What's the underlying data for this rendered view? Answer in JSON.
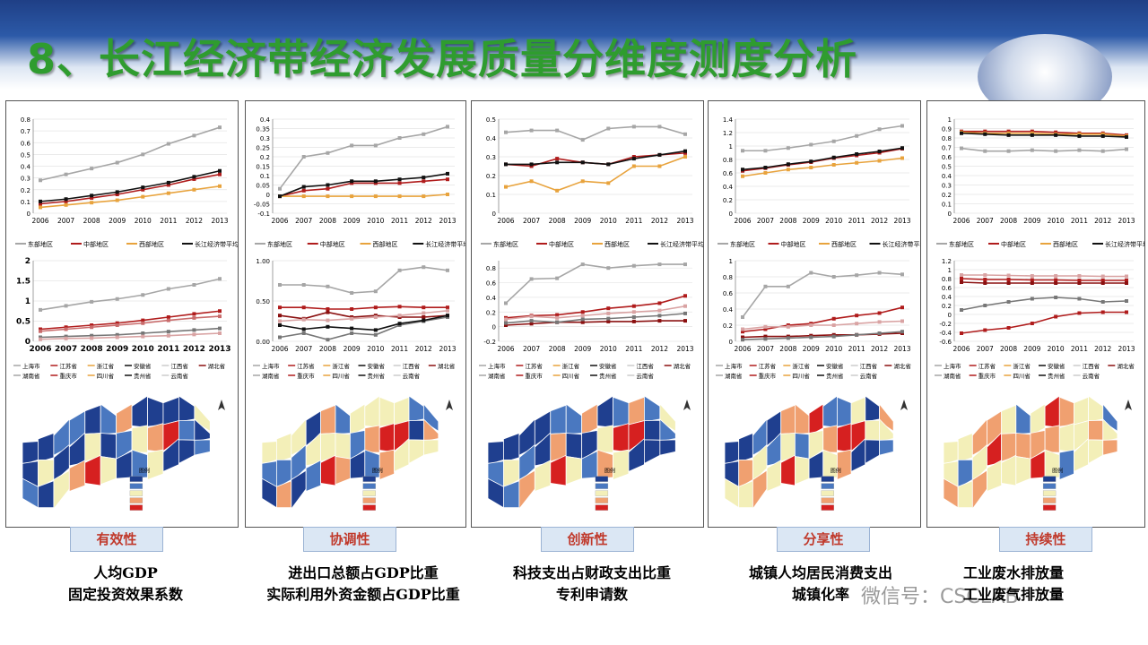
{
  "title": "8、长江经济带经济发展质量分维度测度分析",
  "years": [
    "2006",
    "2007",
    "2008",
    "2009",
    "2010",
    "2011",
    "2012",
    "2013"
  ],
  "region_legend": [
    "东部地区",
    "中部地区",
    "西部地区",
    "长江经济带平均"
  ],
  "province_legend": [
    "上海市",
    "江苏省",
    "浙江省",
    "安徽省",
    "江西省",
    "湖北省",
    "湖南省",
    "重庆市",
    "四川省",
    "贵州省",
    "云南省"
  ],
  "colors": {
    "east": "#a6a6a6",
    "middle": "#b01c1c",
    "west": "#e8a33d",
    "avg": "#111111",
    "title": "#2f9c2f",
    "tag_text": "#c0392b"
  },
  "panels": [
    {
      "tag": "有效性",
      "desc_lines": [
        "人均GDP",
        "固定投资效果系数"
      ],
      "legend4": [
        "东部地区",
        "中部地区",
        "西部地区",
        "长江经济带平均"
      ],
      "top_ticks": [
        "0",
        "0.1",
        "0.2",
        "0.3",
        "0.4",
        "0.5",
        "0.6",
        "0.7",
        "0.8"
      ],
      "top_range": [
        0,
        0.8
      ],
      "top_series": [
        {
          "key": "east",
          "values": [
            0.28,
            0.33,
            0.38,
            0.43,
            0.5,
            0.59,
            0.66,
            0.73
          ]
        },
        {
          "key": "middle",
          "values": [
            0.08,
            0.1,
            0.13,
            0.16,
            0.2,
            0.24,
            0.29,
            0.33
          ]
        },
        {
          "key": "west",
          "values": [
            0.05,
            0.07,
            0.09,
            0.11,
            0.14,
            0.17,
            0.2,
            0.23
          ]
        },
        {
          "key": "avg",
          "values": [
            0.1,
            0.12,
            0.15,
            0.18,
            0.22,
            0.26,
            0.31,
            0.36
          ]
        }
      ],
      "bottom_ticks": [
        "0",
        "0.5",
        "1",
        "1.5",
        "2"
      ],
      "bottom_range": [
        0,
        2
      ],
      "bottom_series": [
        {
          "color": "#a6a6a6",
          "values": [
            0.78,
            0.88,
            0.98,
            1.05,
            1.15,
            1.3,
            1.4,
            1.55
          ]
        },
        {
          "color": "#b01c1c",
          "values": [
            0.3,
            0.35,
            0.4,
            0.45,
            0.52,
            0.6,
            0.68,
            0.75
          ]
        },
        {
          "color": "#c96b6b",
          "values": [
            0.25,
            0.3,
            0.35,
            0.4,
            0.45,
            0.52,
            0.58,
            0.62
          ]
        },
        {
          "color": "#777777",
          "values": [
            0.1,
            0.12,
            0.14,
            0.16,
            0.2,
            0.24,
            0.28,
            0.32
          ]
        },
        {
          "color": "#d9a3a3",
          "values": [
            0.05,
            0.07,
            0.08,
            0.1,
            0.12,
            0.14,
            0.17,
            0.2
          ]
        }
      ],
      "bottom_bold": true,
      "map_legend_title": "图例",
      "palette": [
        "#1f3f8f",
        "#4a78c0",
        "#f3efb8",
        "#f0a070",
        "#d62020"
      ],
      "map_color_order": [
        0,
        0,
        1,
        0,
        2,
        0,
        1,
        0,
        2,
        1,
        0,
        3,
        0,
        2,
        4,
        1,
        0,
        2,
        3,
        1,
        0,
        0,
        2,
        1,
        0,
        3,
        2,
        0,
        4
      ]
    },
    {
      "tag": "协调性",
      "desc_lines": [
        "进出口总额占GDP比重",
        "实际利用外资金额占GDP比重"
      ],
      "legend4": [
        "东部地区",
        "中部地区",
        "西部地区",
        "长江经济带平均"
      ],
      "top_ticks": [
        "-0.1",
        "-0.05",
        "0",
        "0.05",
        "0.1",
        "0.15",
        "0.2",
        "0.25",
        "0.3",
        "0.35",
        "0.4"
      ],
      "top_range": [
        -0.1,
        0.4
      ],
      "top_series": [
        {
          "key": "east",
          "values": [
            0.03,
            0.2,
            0.22,
            0.26,
            0.26,
            0.3,
            0.32,
            0.36
          ]
        },
        {
          "key": "middle",
          "values": [
            -0.01,
            0.02,
            0.03,
            0.06,
            0.06,
            0.06,
            0.07,
            0.08
          ]
        },
        {
          "key": "west",
          "values": [
            -0.01,
            -0.01,
            -0.01,
            -0.01,
            -0.01,
            -0.01,
            -0.01,
            0
          ]
        },
        {
          "key": "avg",
          "values": [
            -0.01,
            0.04,
            0.05,
            0.07,
            0.07,
            0.08,
            0.09,
            0.11
          ]
        }
      ],
      "bottom_ticks": [
        "0.00",
        "0.50",
        "1.00"
      ],
      "bottom_range": [
        0,
        1
      ],
      "bottom_series": [
        {
          "color": "#a6a6a6",
          "values": [
            0.7,
            0.7,
            0.68,
            0.6,
            0.62,
            0.88,
            0.92,
            0.88
          ]
        },
        {
          "color": "#b01c1c",
          "values": [
            0.42,
            0.42,
            0.4,
            0.4,
            0.42,
            0.43,
            0.42,
            0.42
          ]
        },
        {
          "color": "#8b1010",
          "values": [
            0.32,
            0.28,
            0.36,
            0.3,
            0.32,
            0.3,
            0.3,
            0.32
          ]
        },
        {
          "color": "#777777",
          "values": [
            0.05,
            0.1,
            0.02,
            0.1,
            0.08,
            0.2,
            0.25,
            0.3
          ]
        },
        {
          "color": "#111111",
          "values": [
            0.2,
            0.15,
            0.18,
            0.16,
            0.14,
            0.22,
            0.26,
            0.32
          ]
        },
        {
          "color": "#d9a3a3",
          "values": [
            0.25,
            0.27,
            0.26,
            0.28,
            0.3,
            0.32,
            0.35,
            0.38
          ]
        }
      ],
      "bottom_bold": false,
      "map_legend_title": "图例",
      "palette": [
        "#1f3f8f",
        "#4a78c0",
        "#f3efb8",
        "#f0a070",
        "#d62020"
      ],
      "map_color_order": [
        2,
        1,
        0,
        2,
        1,
        3,
        2,
        1,
        0,
        0,
        2,
        1,
        3,
        2,
        4,
        1,
        2,
        3,
        2,
        1,
        0,
        2,
        3,
        1,
        2,
        4,
        3,
        2,
        4
      ]
    },
    {
      "tag": "创新性",
      "desc_lines": [
        "科技支出占财政支出比重",
        "专利申请数"
      ],
      "legend4": [
        "东部地区",
        "中部地区",
        "西部地区",
        "长江经济带平均"
      ],
      "top_ticks": [
        "0",
        "0.1",
        "0.2",
        "0.3",
        "0.4",
        "0.5"
      ],
      "top_range": [
        0,
        0.5
      ],
      "top_series": [
        {
          "key": "east",
          "values": [
            0.43,
            0.44,
            0.44,
            0.39,
            0.45,
            0.46,
            0.46,
            0.42
          ]
        },
        {
          "key": "middle",
          "values": [
            0.26,
            0.25,
            0.29,
            0.27,
            0.26,
            0.3,
            0.31,
            0.32
          ]
        },
        {
          "key": "west",
          "values": [
            0.14,
            0.17,
            0.12,
            0.17,
            0.16,
            0.25,
            0.25,
            0.3
          ]
        },
        {
          "key": "avg",
          "values": [
            0.26,
            0.26,
            0.27,
            0.27,
            0.26,
            0.29,
            0.31,
            0.33
          ]
        }
      ],
      "bottom_ticks": [
        "-0.2",
        "0",
        "0.2",
        "0.4",
        "0.6",
        "0.8"
      ],
      "bottom_range": [
        -0.2,
        0.9
      ],
      "bottom_series": [
        {
          "color": "#a6a6a6",
          "values": [
            0.32,
            0.65,
            0.66,
            0.85,
            0.8,
            0.83,
            0.85,
            0.85
          ]
        },
        {
          "color": "#b01c1c",
          "values": [
            0.12,
            0.15,
            0.16,
            0.2,
            0.25,
            0.28,
            0.32,
            0.42
          ]
        },
        {
          "color": "#8b1010",
          "values": [
            0.02,
            0.04,
            0.06,
            0.06,
            0.07,
            0.07,
            0.08,
            0.08
          ]
        },
        {
          "color": "#777777",
          "values": [
            0.05,
            0.08,
            0.06,
            0.1,
            0.11,
            0.13,
            0.15,
            0.18
          ]
        },
        {
          "color": "#d9a3a3",
          "values": [
            0.1,
            0.14,
            0.12,
            0.15,
            0.18,
            0.2,
            0.22,
            0.28
          ]
        }
      ],
      "bottom_bold": false,
      "map_legend_title": "图例",
      "palette": [
        "#1f3f8f",
        "#4a78c0",
        "#f3efb8",
        "#f0a070",
        "#d62020"
      ],
      "map_color_order": [
        0,
        1,
        0,
        0,
        2,
        1,
        0,
        1,
        3,
        0,
        0,
        2,
        1,
        3,
        4,
        1,
        0,
        2,
        3,
        0,
        1,
        0,
        2,
        3,
        1,
        4,
        2,
        3,
        4
      ]
    },
    {
      "tag": "分享性",
      "desc_lines": [
        "城镇人均居民消费支出",
        "城镇化率"
      ],
      "legend4": [
        "东部地区",
        "中部地区",
        "西部地区",
        "长江经济带平均"
      ],
      "top_ticks": [
        "0",
        "0.2",
        "0.4",
        "0.6",
        "0.8",
        "1",
        "1.2",
        "1.4"
      ],
      "top_range": [
        0,
        1.4
      ],
      "top_series": [
        {
          "key": "east",
          "values": [
            0.93,
            0.93,
            0.97,
            1.02,
            1.07,
            1.15,
            1.25,
            1.3
          ]
        },
        {
          "key": "middle",
          "values": [
            0.63,
            0.67,
            0.72,
            0.76,
            0.82,
            0.86,
            0.9,
            0.96
          ]
        },
        {
          "key": "west",
          "values": [
            0.55,
            0.6,
            0.65,
            0.68,
            0.72,
            0.75,
            0.78,
            0.82
          ]
        },
        {
          "key": "avg",
          "values": [
            0.65,
            0.68,
            0.73,
            0.77,
            0.83,
            0.88,
            0.92,
            0.97
          ]
        }
      ],
      "bottom_ticks": [
        "0",
        "0.2",
        "0.4",
        "0.6",
        "0.8",
        "1"
      ],
      "bottom_range": [
        0,
        1
      ],
      "bottom_series": [
        {
          "color": "#a6a6a6",
          "values": [
            0.3,
            0.68,
            0.68,
            0.85,
            0.8,
            0.82,
            0.85,
            0.83
          ]
        },
        {
          "color": "#b01c1c",
          "values": [
            0.12,
            0.15,
            0.2,
            0.22,
            0.28,
            0.32,
            0.35,
            0.42
          ]
        },
        {
          "color": "#8b1010",
          "values": [
            0.05,
            0.06,
            0.06,
            0.07,
            0.08,
            0.08,
            0.09,
            0.1
          ]
        },
        {
          "color": "#d9a3a3",
          "values": [
            0.15,
            0.18,
            0.18,
            0.2,
            0.2,
            0.22,
            0.24,
            0.25
          ]
        },
        {
          "color": "#777777",
          "values": [
            0.02,
            0.03,
            0.04,
            0.05,
            0.06,
            0.08,
            0.1,
            0.12
          ]
        }
      ],
      "bottom_bold": false,
      "map_legend_title": "图例",
      "palette": [
        "#1f3f8f",
        "#4a78c0",
        "#f3efb8",
        "#f0a070",
        "#d62020"
      ],
      "map_color_order": [
        0,
        0,
        2,
        0,
        3,
        2,
        1,
        2,
        3,
        0,
        1,
        2,
        3,
        2,
        4,
        3,
        1,
        2,
        4,
        2,
        0,
        1,
        3,
        2,
        1,
        4,
        3,
        2,
        4
      ]
    },
    {
      "tag": "持续性",
      "desc_lines": [
        "工业废水排放量",
        "工业废气排放量"
      ],
      "legend4": [
        "东部地区",
        "中部地区",
        "西部地区",
        "长江经济带平均水平"
      ],
      "top_ticks": [
        "0",
        "0.1",
        "0.2",
        "0.3",
        "0.4",
        "0.5",
        "0.6",
        "0.7",
        "0.8",
        "0.9",
        "1"
      ],
      "top_range": [
        0,
        1
      ],
      "top_series": [
        {
          "key": "east",
          "values": [
            0.69,
            0.66,
            0.66,
            0.67,
            0.66,
            0.67,
            0.66,
            0.68
          ]
        },
        {
          "key": "middle",
          "values": [
            0.87,
            0.87,
            0.87,
            0.87,
            0.86,
            0.85,
            0.85,
            0.83
          ]
        },
        {
          "key": "west",
          "values": [
            0.86,
            0.85,
            0.85,
            0.85,
            0.84,
            0.84,
            0.84,
            0.82
          ]
        },
        {
          "key": "avg",
          "values": [
            0.85,
            0.84,
            0.83,
            0.83,
            0.83,
            0.82,
            0.82,
            0.81
          ]
        }
      ],
      "bottom_ticks": [
        "-0.6",
        "-0.4",
        "-0.2",
        "0",
        "0.2",
        "0.4",
        "0.6",
        "0.8",
        "1",
        "1.2"
      ],
      "bottom_range": [
        -0.6,
        1.2
      ],
      "bottom_series": [
        {
          "color": "#d9a3a3",
          "values": [
            0.88,
            0.88,
            0.87,
            0.86,
            0.86,
            0.86,
            0.85,
            0.85
          ]
        },
        {
          "color": "#b01c1c",
          "values": [
            0.8,
            0.78,
            0.78,
            0.77,
            0.77,
            0.76,
            0.76,
            0.76
          ]
        },
        {
          "color": "#8b1010",
          "values": [
            0.72,
            0.7,
            0.7,
            0.7,
            0.7,
            0.7,
            0.7,
            0.7
          ]
        },
        {
          "color": "#777777",
          "values": [
            0.1,
            0.2,
            0.28,
            0.35,
            0.38,
            0.35,
            0.28,
            0.3
          ]
        },
        {
          "color": "#b01c1c",
          "values": [
            -0.42,
            -0.35,
            -0.3,
            -0.2,
            -0.05,
            0.03,
            0.05,
            0.05
          ]
        }
      ],
      "bottom_bold": false,
      "map_legend_title": "图例",
      "palette": [
        "#1f3f8f",
        "#4a78c0",
        "#f3efb8",
        "#f0a070",
        "#d62020"
      ],
      "map_color_order": [
        2,
        2,
        3,
        2,
        1,
        2,
        3,
        2,
        3,
        3,
        4,
        2,
        2,
        3,
        2,
        1,
        3,
        2,
        2,
        3,
        4,
        4,
        3,
        2,
        3,
        2,
        1,
        2,
        2
      ]
    }
  ],
  "watermark": "微信号：CSCLAB"
}
